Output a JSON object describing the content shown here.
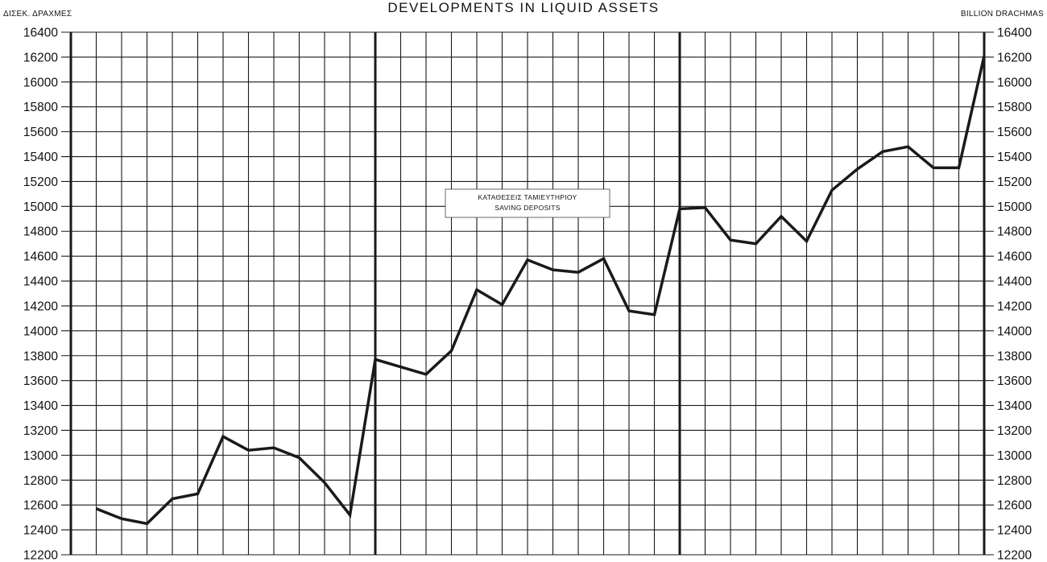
{
  "chart_data": {
    "type": "line",
    "title": "DEVELOPMENTS IN LIQUID ASSETS",
    "ylabel_left": "ΔΙΣΕΚ. ΔΡΑΧΜΕΣ",
    "ylabel_right": "BILLION DRACHMAS",
    "ylim": [
      12200,
      16400
    ],
    "ytick_step": 200,
    "grid": true,
    "annotation": {
      "line1": "ΚΑΤΑΘΕΣΕΙΣ ΤΑΜΙΕΥΤΗΡΙΟΥ",
      "line2": "SAVING DEPOSITS"
    },
    "series": [
      {
        "values": [
          12570,
          12490,
          12450,
          12650,
          12690,
          13150,
          13040,
          13060,
          12980,
          12780,
          12520,
          13770,
          13710,
          13650,
          13840,
          14330,
          14210,
          14570,
          14490,
          14470,
          14580,
          14160,
          14130,
          14980,
          14990,
          14730,
          14700,
          14920,
          14720,
          15130,
          15300,
          15440,
          15480,
          15310,
          15310,
          16210
        ]
      }
    ]
  },
  "colors": {
    "line": "#1a1a1a",
    "grid": "#1a1a1a"
  }
}
